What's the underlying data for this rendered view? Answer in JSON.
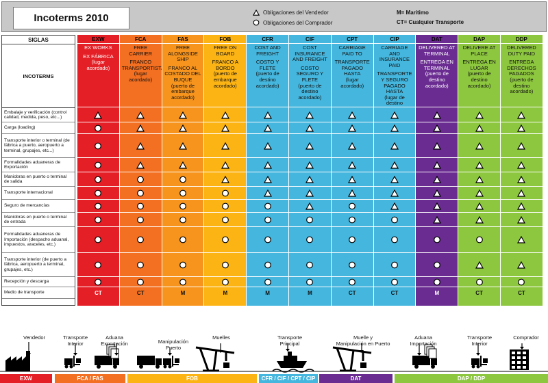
{
  "header": {
    "title": "Incoterms 2010",
    "legend_seller": "Obligaciones del Vendedor",
    "legend_buyer": "Obligaciones del Comprador",
    "legend_m": "M= Marítimo",
    "legend_ct": "CT= Cualquier Transporte"
  },
  "table": {
    "siglas_label": "SIGLAS",
    "incoterms_label": "INCOTERMS",
    "rows": [
      "Embalaje y verificación (control calidad, medida, peso, etc...)",
      "Carga (loading)",
      "Transporte interior o terminal (de fábrica a puerto, aeropuerto a terminal, grupajes, etc...)",
      "Formalidades aduaneras de Exportación",
      "Maniobras en puerto o terminal de salida",
      "Transporte internacional",
      "Seguro de mercancías",
      "Maniobras en puerto o terminal de entrada",
      "Formalidades aduaneras de Importación (despacho aduanal, impuestos, araceles, etc.)",
      "Transporte interior (de puerto a fábrica, aeropuerto a terminal, grupajes, etc.)",
      "Recepción y descarga",
      "Medio de transporte"
    ],
    "columns": [
      {
        "code": "EXW",
        "en": "EX WORKS",
        "es": "EX FÁBRICA\n(lugar acordado)",
        "color": "#e41f26",
        "cells": [
          "T",
          "C",
          "C",
          "C",
          "C",
          "C",
          "C",
          "C",
          "C",
          "C",
          "C"
        ],
        "mode": "CT"
      },
      {
        "code": "FCA",
        "en": "FREE CARRIER",
        "es": "FRANCO TRANSPORTISTA\n(lugar acordado)",
        "color": "#f36f21",
        "cells": [
          "T",
          "T",
          "T",
          "T",
          "C",
          "C",
          "C",
          "C",
          "C",
          "C",
          "C"
        ],
        "mode": "CT"
      },
      {
        "code": "FAS",
        "en": "FREE ALONGSIDE SHIP",
        "es": "FRANCO AL COSTADO DEL BUQUE\n(puerto de embarque acordado)",
        "color": "#f7941d",
        "cells": [
          "T",
          "T",
          "T",
          "T",
          "C",
          "C",
          "C",
          "C",
          "C",
          "C",
          "C"
        ],
        "mode": "M"
      },
      {
        "code": "FOB",
        "en": "FREE ON BOARD",
        "es": "FRANCO A BORDO\n(puerto de embarque acordado)",
        "color": "#fcb415",
        "cells": [
          "T",
          "T",
          "T",
          "T",
          "T",
          "C",
          "C",
          "C",
          "C",
          "C",
          "C"
        ],
        "mode": "M"
      },
      {
        "code": "CFR",
        "en": "COST AND FREIGHT",
        "es": "COSTO Y FLETE\n(puerto de destino acordado)",
        "color": "#45b6dd",
        "cells": [
          "T",
          "T",
          "T",
          "T",
          "T",
          "T",
          "C",
          "C",
          "C",
          "C",
          "C"
        ],
        "mode": "M"
      },
      {
        "code": "CIF",
        "en": "COST INSURANCE AND FREIGHT",
        "es": "COSTO SEGURO Y FLETE\n(puerto de destino acordado)",
        "color": "#45b6dd",
        "cells": [
          "T",
          "T",
          "T",
          "T",
          "T",
          "T",
          "T",
          "C",
          "C",
          "C",
          "C"
        ],
        "mode": "M"
      },
      {
        "code": "CPT",
        "en": "CARRIAGE PAID TO",
        "es": "TRANSPORTE PAGADO HASTA\n(lugar acordado)",
        "color": "#45b6dd",
        "cells": [
          "T",
          "T",
          "T",
          "T",
          "T",
          "T",
          "C",
          "C",
          "C",
          "C",
          "C"
        ],
        "mode": "CT"
      },
      {
        "code": "CIP",
        "en": "CARRIAGE AND INSURANCE PAID",
        "es": "TRANSPORTE Y SEGURO PAGADO HASTA\n(lugar de destino acordado)",
        "color": "#45b6dd",
        "cells": [
          "T",
          "T",
          "T",
          "T",
          "T",
          "T",
          "T",
          "C",
          "C",
          "C",
          "C"
        ],
        "mode": "CT"
      },
      {
        "code": "DAT",
        "en": "DELIVERED AT TERMINAL",
        "es": "ENTREGA EN TERMINAL\n(puerto de destino acordado)",
        "color": "#6a2c91",
        "cells": [
          "T",
          "T",
          "T",
          "T",
          "T",
          "T",
          "T",
          "T",
          "C",
          "C",
          "C"
        ],
        "mode": "M"
      },
      {
        "code": "DAP",
        "en": "DELIVERE AT PLACE",
        "es": "ENTREGA EN LUGAR\n(puerto de destino acordado)",
        "color": "#8dc63f",
        "cells": [
          "T",
          "T",
          "T",
          "T",
          "T",
          "T",
          "T",
          "T",
          "C",
          "T",
          "C"
        ],
        "mode": "CT"
      },
      {
        "code": "DDP",
        "en": "DELIVERED DUTY PAID",
        "es": "ENTREGA DERECHOS PAGADOS\n(puerto de destino acordado)",
        "color": "#8dc63f",
        "cells": [
          "T",
          "T",
          "T",
          "T",
          "T",
          "T",
          "T",
          "T",
          "T",
          "T",
          "C"
        ],
        "mode": "CT"
      }
    ]
  },
  "bottom": {
    "labels": [
      {
        "text": "Vendedor",
        "icon": "factory-icon"
      },
      {
        "text": "Transporte\nInterior",
        "icon": "forklift-icon"
      },
      {
        "text": "Aduana\nExportación",
        "icon": "truck-documents-icon"
      },
      {
        "text": "Manipulación\nPuerto",
        "icon": "truck-forklift-icon"
      },
      {
        "text": "Muelles",
        "icon": "crane-icon"
      },
      {
        "text": "Transporte\nPrincipal",
        "icon": "ship-icon"
      },
      {
        "text": "Muelle y\nManipulación en Puerto",
        "icon": "crane-icon"
      },
      {
        "text": "Aduana\nImportación",
        "icon": "truck-documents-icon"
      },
      {
        "text": "Transporte\nInterior",
        "icon": "forklift-icon"
      },
      {
        "text": "Comprador",
        "icon": "building-icon"
      }
    ],
    "bars": [
      {
        "label": "EXW",
        "color": "#e41f26"
      },
      {
        "label": "FCA / FAS",
        "color": "#f36f21"
      },
      {
        "label": "FOB",
        "color": "#fcb415"
      },
      {
        "label": "CFR / CIF / CPT / CIP",
        "color": "#45b6dd"
      },
      {
        "label": "DAT",
        "color": "#6a2c91"
      },
      {
        "label": "DAP / DDP",
        "color": "#8dc63f"
      }
    ]
  }
}
